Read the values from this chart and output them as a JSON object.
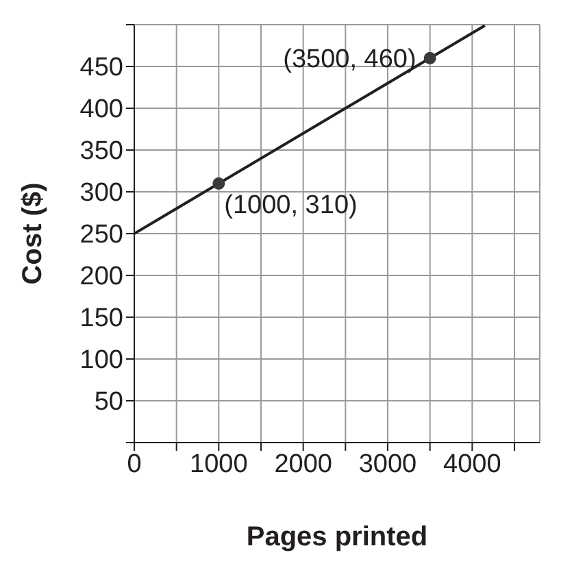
{
  "chart_data": {
    "type": "line",
    "xlabel": "Pages printed",
    "ylabel": "Cost ($)",
    "xlim": [
      0,
      4800
    ],
    "ylim": [
      0,
      500
    ],
    "xticks": [
      {
        "value": 0,
        "label": "0"
      },
      {
        "value": 500,
        "label": null
      },
      1000,
      {
        "value": 1500,
        "label": null
      },
      2000,
      {
        "value": 2500,
        "label": null
      },
      3000,
      {
        "value": 3500,
        "label": null
      },
      4000,
      {
        "value": 4500,
        "label": null
      }
    ],
    "yticks": [
      {
        "value": 0,
        "label": null
      },
      50,
      100,
      150,
      200,
      250,
      300,
      350,
      400,
      450,
      {
        "value": 500,
        "label": null
      }
    ],
    "grid": true,
    "legend": false,
    "series": [
      {
        "color": "#231f20",
        "x": [
          0,
          4150
        ],
        "values": [
          250,
          499
        ],
        "marker": "none"
      },
      {
        "type": "scatter",
        "color": "#3a3a3a",
        "x": [
          1000,
          3500
        ],
        "values": [
          310,
          460
        ],
        "marker": "circle"
      }
    ],
    "annotations": [
      {
        "text": "(3500, 460)",
        "x": 3500,
        "y": 460
      },
      {
        "text": "(1000, 310)",
        "x": 1000,
        "y": 310
      }
    ]
  }
}
